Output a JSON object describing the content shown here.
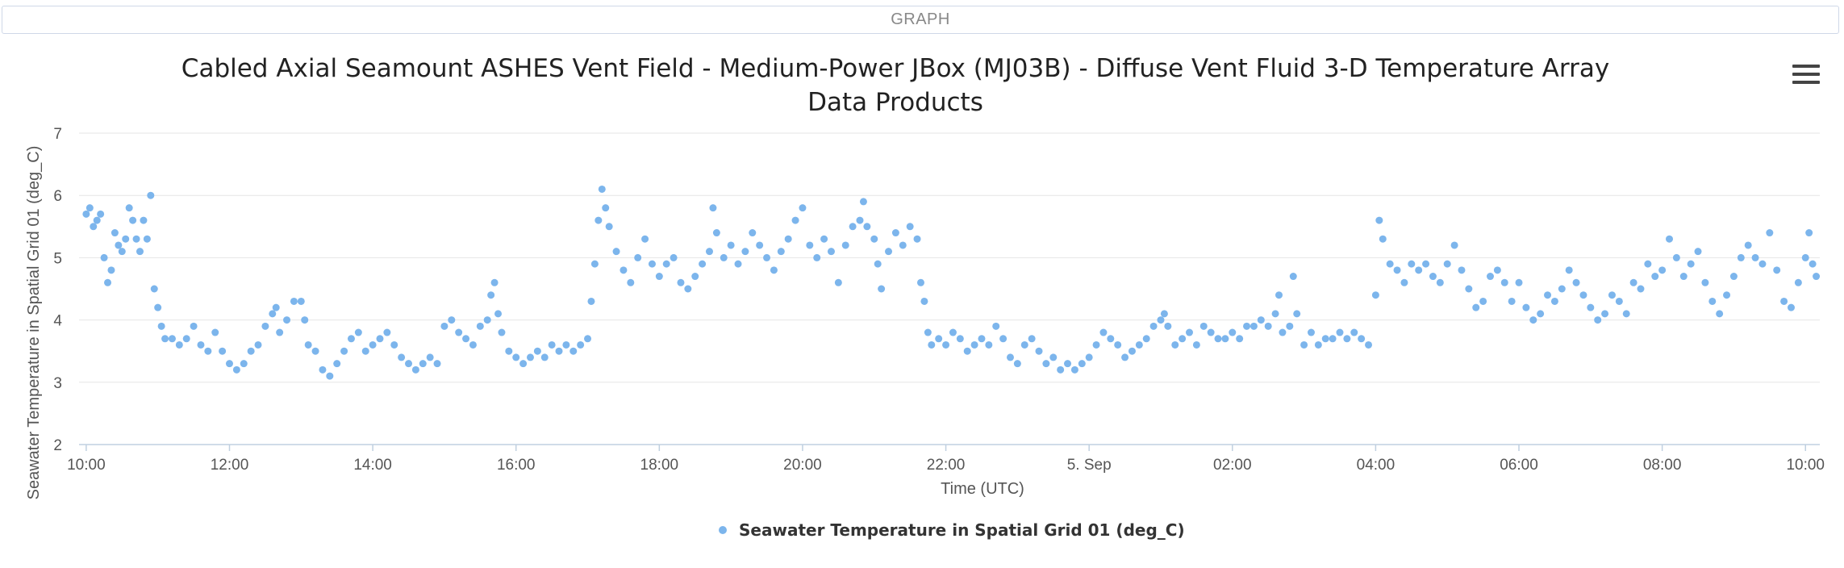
{
  "tab": {
    "label": "GRAPH"
  },
  "menu": {
    "icon": "hamburger-menu-icon"
  },
  "chart_data": {
    "type": "scatter",
    "title_line1": "Cabled Axial Seamount ASHES Vent Field - Medium-Power JBox (MJ03B) - Diffuse Vent Fluid 3-D Temperature Array",
    "title_line2": "Data Products",
    "xlabel": "Time (UTC)",
    "ylabel": "Seawater Temperature in Spatial Grid 01 (deg_C)",
    "ylim": [
      2,
      7
    ],
    "yticks": [
      "2",
      "3",
      "4",
      "5",
      "6",
      "7"
    ],
    "xlim_hours": [
      9.9,
      34.2
    ],
    "xticks": [
      {
        "h": 10,
        "label": "10:00"
      },
      {
        "h": 12,
        "label": "12:00"
      },
      {
        "h": 14,
        "label": "14:00"
      },
      {
        "h": 16,
        "label": "16:00"
      },
      {
        "h": 18,
        "label": "18:00"
      },
      {
        "h": 20,
        "label": "20:00"
      },
      {
        "h": 22,
        "label": "22:00"
      },
      {
        "h": 24,
        "label": "5. Sep"
      },
      {
        "h": 26,
        "label": "02:00"
      },
      {
        "h": 28,
        "label": "04:00"
      },
      {
        "h": 30,
        "label": "06:00"
      },
      {
        "h": 32,
        "label": "08:00"
      },
      {
        "h": 34,
        "label": "10:00"
      }
    ],
    "grid": true,
    "legend_position": "bottom-center",
    "series": [
      {
        "name": "Seawater Temperature in Spatial Grid 01 (deg_C)",
        "color": "#7cb5ec",
        "points": [
          [
            10.0,
            5.7
          ],
          [
            10.05,
            5.8
          ],
          [
            10.1,
            5.5
          ],
          [
            10.15,
            5.6
          ],
          [
            10.2,
            5.7
          ],
          [
            10.25,
            5.0
          ],
          [
            10.3,
            4.6
          ],
          [
            10.35,
            4.8
          ],
          [
            10.4,
            5.4
          ],
          [
            10.45,
            5.2
          ],
          [
            10.5,
            5.1
          ],
          [
            10.55,
            5.3
          ],
          [
            10.6,
            5.8
          ],
          [
            10.65,
            5.6
          ],
          [
            10.7,
            5.3
          ],
          [
            10.75,
            5.1
          ],
          [
            10.8,
            5.6
          ],
          [
            10.85,
            5.3
          ],
          [
            10.9,
            6.0
          ],
          [
            10.95,
            4.5
          ],
          [
            11.0,
            4.2
          ],
          [
            11.05,
            3.9
          ],
          [
            11.1,
            3.7
          ],
          [
            11.2,
            3.7
          ],
          [
            11.3,
            3.6
          ],
          [
            11.4,
            3.7
          ],
          [
            11.5,
            3.9
          ],
          [
            11.6,
            3.6
          ],
          [
            11.7,
            3.5
          ],
          [
            11.8,
            3.8
          ],
          [
            11.9,
            3.5
          ],
          [
            12.0,
            3.3
          ],
          [
            12.1,
            3.2
          ],
          [
            12.2,
            3.3
          ],
          [
            12.3,
            3.5
          ],
          [
            12.4,
            3.6
          ],
          [
            12.5,
            3.9
          ],
          [
            12.6,
            4.1
          ],
          [
            12.65,
            4.2
          ],
          [
            12.7,
            3.8
          ],
          [
            12.8,
            4.0
          ],
          [
            12.9,
            4.3
          ],
          [
            13.0,
            4.3
          ],
          [
            13.05,
            4.0
          ],
          [
            13.1,
            3.6
          ],
          [
            13.2,
            3.5
          ],
          [
            13.3,
            3.2
          ],
          [
            13.4,
            3.1
          ],
          [
            13.5,
            3.3
          ],
          [
            13.6,
            3.5
          ],
          [
            13.7,
            3.7
          ],
          [
            13.8,
            3.8
          ],
          [
            13.9,
            3.5
          ],
          [
            14.0,
            3.6
          ],
          [
            14.1,
            3.7
          ],
          [
            14.2,
            3.8
          ],
          [
            14.3,
            3.6
          ],
          [
            14.4,
            3.4
          ],
          [
            14.5,
            3.3
          ],
          [
            14.6,
            3.2
          ],
          [
            14.7,
            3.3
          ],
          [
            14.8,
            3.4
          ],
          [
            14.9,
            3.3
          ],
          [
            15.0,
            3.9
          ],
          [
            15.1,
            4.0
          ],
          [
            15.2,
            3.8
          ],
          [
            15.3,
            3.7
          ],
          [
            15.4,
            3.6
          ],
          [
            15.5,
            3.9
          ],
          [
            15.6,
            4.0
          ],
          [
            15.65,
            4.4
          ],
          [
            15.7,
            4.6
          ],
          [
            15.75,
            4.1
          ],
          [
            15.8,
            3.8
          ],
          [
            15.9,
            3.5
          ],
          [
            16.0,
            3.4
          ],
          [
            16.1,
            3.3
          ],
          [
            16.2,
            3.4
          ],
          [
            16.3,
            3.5
          ],
          [
            16.4,
            3.4
          ],
          [
            16.5,
            3.6
          ],
          [
            16.6,
            3.5
          ],
          [
            16.7,
            3.6
          ],
          [
            16.8,
            3.5
          ],
          [
            16.9,
            3.6
          ],
          [
            17.0,
            3.7
          ],
          [
            17.05,
            4.3
          ],
          [
            17.1,
            4.9
          ],
          [
            17.15,
            5.6
          ],
          [
            17.2,
            6.1
          ],
          [
            17.25,
            5.8
          ],
          [
            17.3,
            5.5
          ],
          [
            17.4,
            5.1
          ],
          [
            17.5,
            4.8
          ],
          [
            17.6,
            4.6
          ],
          [
            17.7,
            5.0
          ],
          [
            17.8,
            5.3
          ],
          [
            17.9,
            4.9
          ],
          [
            18.0,
            4.7
          ],
          [
            18.1,
            4.9
          ],
          [
            18.2,
            5.0
          ],
          [
            18.3,
            4.6
          ],
          [
            18.4,
            4.5
          ],
          [
            18.5,
            4.7
          ],
          [
            18.6,
            4.9
          ],
          [
            18.7,
            5.1
          ],
          [
            18.75,
            5.8
          ],
          [
            18.8,
            5.4
          ],
          [
            18.9,
            5.0
          ],
          [
            19.0,
            5.2
          ],
          [
            19.1,
            4.9
          ],
          [
            19.2,
            5.1
          ],
          [
            19.3,
            5.4
          ],
          [
            19.4,
            5.2
          ],
          [
            19.5,
            5.0
          ],
          [
            19.6,
            4.8
          ],
          [
            19.7,
            5.1
          ],
          [
            19.8,
            5.3
          ],
          [
            19.9,
            5.6
          ],
          [
            20.0,
            5.8
          ],
          [
            20.1,
            5.2
          ],
          [
            20.2,
            5.0
          ],
          [
            20.3,
            5.3
          ],
          [
            20.4,
            5.1
          ],
          [
            20.5,
            4.6
          ],
          [
            20.6,
            5.2
          ],
          [
            20.7,
            5.5
          ],
          [
            20.8,
            5.6
          ],
          [
            20.85,
            5.9
          ],
          [
            20.9,
            5.5
          ],
          [
            21.0,
            5.3
          ],
          [
            21.05,
            4.9
          ],
          [
            21.1,
            4.5
          ],
          [
            21.2,
            5.1
          ],
          [
            21.3,
            5.4
          ],
          [
            21.4,
            5.2
          ],
          [
            21.5,
            5.5
          ],
          [
            21.6,
            5.3
          ],
          [
            21.65,
            4.6
          ],
          [
            21.7,
            4.3
          ],
          [
            21.75,
            3.8
          ],
          [
            21.8,
            3.6
          ],
          [
            21.9,
            3.7
          ],
          [
            22.0,
            3.6
          ],
          [
            22.1,
            3.8
          ],
          [
            22.2,
            3.7
          ],
          [
            22.3,
            3.5
          ],
          [
            22.4,
            3.6
          ],
          [
            22.5,
            3.7
          ],
          [
            22.6,
            3.6
          ],
          [
            22.7,
            3.9
          ],
          [
            22.8,
            3.7
          ],
          [
            22.9,
            3.4
          ],
          [
            23.0,
            3.3
          ],
          [
            23.1,
            3.6
          ],
          [
            23.2,
            3.7
          ],
          [
            23.3,
            3.5
          ],
          [
            23.4,
            3.3
          ],
          [
            23.5,
            3.4
          ],
          [
            23.6,
            3.2
          ],
          [
            23.7,
            3.3
          ],
          [
            23.8,
            3.2
          ],
          [
            23.9,
            3.3
          ],
          [
            24.0,
            3.4
          ],
          [
            24.1,
            3.6
          ],
          [
            24.2,
            3.8
          ],
          [
            24.3,
            3.7
          ],
          [
            24.4,
            3.6
          ],
          [
            24.5,
            3.4
          ],
          [
            24.6,
            3.5
          ],
          [
            24.7,
            3.6
          ],
          [
            24.8,
            3.7
          ],
          [
            24.9,
            3.9
          ],
          [
            25.0,
            4.0
          ],
          [
            25.05,
            4.1
          ],
          [
            25.1,
            3.9
          ],
          [
            25.2,
            3.6
          ],
          [
            25.3,
            3.7
          ],
          [
            25.4,
            3.8
          ],
          [
            25.5,
            3.6
          ],
          [
            25.6,
            3.9
          ],
          [
            25.7,
            3.8
          ],
          [
            25.8,
            3.7
          ],
          [
            25.9,
            3.7
          ],
          [
            26.0,
            3.8
          ],
          [
            26.1,
            3.7
          ],
          [
            26.2,
            3.9
          ],
          [
            26.3,
            3.9
          ],
          [
            26.4,
            4.0
          ],
          [
            26.5,
            3.9
          ],
          [
            26.6,
            4.1
          ],
          [
            26.65,
            4.4
          ],
          [
            26.7,
            3.8
          ],
          [
            26.8,
            3.9
          ],
          [
            26.85,
            4.7
          ],
          [
            26.9,
            4.1
          ],
          [
            27.0,
            3.6
          ],
          [
            27.1,
            3.8
          ],
          [
            27.2,
            3.6
          ],
          [
            27.3,
            3.7
          ],
          [
            27.4,
            3.7
          ],
          [
            27.5,
            3.8
          ],
          [
            27.6,
            3.7
          ],
          [
            27.7,
            3.8
          ],
          [
            27.8,
            3.7
          ],
          [
            27.9,
            3.6
          ],
          [
            28.0,
            4.4
          ],
          [
            28.05,
            5.6
          ],
          [
            28.1,
            5.3
          ],
          [
            28.2,
            4.9
          ],
          [
            28.3,
            4.8
          ],
          [
            28.4,
            4.6
          ],
          [
            28.5,
            4.9
          ],
          [
            28.6,
            4.8
          ],
          [
            28.7,
            4.9
          ],
          [
            28.8,
            4.7
          ],
          [
            28.9,
            4.6
          ],
          [
            29.0,
            4.9
          ],
          [
            29.1,
            5.2
          ],
          [
            29.2,
            4.8
          ],
          [
            29.3,
            4.5
          ],
          [
            29.4,
            4.2
          ],
          [
            29.5,
            4.3
          ],
          [
            29.6,
            4.7
          ],
          [
            29.7,
            4.8
          ],
          [
            29.8,
            4.6
          ],
          [
            29.9,
            4.3
          ],
          [
            30.0,
            4.6
          ],
          [
            30.1,
            4.2
          ],
          [
            30.2,
            4.0
          ],
          [
            30.3,
            4.1
          ],
          [
            30.4,
            4.4
          ],
          [
            30.5,
            4.3
          ],
          [
            30.6,
            4.5
          ],
          [
            30.7,
            4.8
          ],
          [
            30.8,
            4.6
          ],
          [
            30.9,
            4.4
          ],
          [
            31.0,
            4.2
          ],
          [
            31.1,
            4.0
          ],
          [
            31.2,
            4.1
          ],
          [
            31.3,
            4.4
          ],
          [
            31.4,
            4.3
          ],
          [
            31.5,
            4.1
          ],
          [
            31.6,
            4.6
          ],
          [
            31.7,
            4.5
          ],
          [
            31.8,
            4.9
          ],
          [
            31.9,
            4.7
          ],
          [
            32.0,
            4.8
          ],
          [
            32.1,
            5.3
          ],
          [
            32.2,
            5.0
          ],
          [
            32.3,
            4.7
          ],
          [
            32.4,
            4.9
          ],
          [
            32.5,
            5.1
          ],
          [
            32.6,
            4.6
          ],
          [
            32.7,
            4.3
          ],
          [
            32.8,
            4.1
          ],
          [
            32.9,
            4.4
          ],
          [
            33.0,
            4.7
          ],
          [
            33.1,
            5.0
          ],
          [
            33.2,
            5.2
          ],
          [
            33.3,
            5.0
          ],
          [
            33.4,
            4.9
          ],
          [
            33.5,
            5.4
          ],
          [
            33.6,
            4.8
          ],
          [
            33.7,
            4.3
          ],
          [
            33.8,
            4.2
          ],
          [
            33.9,
            4.6
          ],
          [
            34.0,
            5.0
          ],
          [
            34.05,
            5.4
          ],
          [
            34.1,
            4.9
          ],
          [
            34.15,
            4.7
          ]
        ]
      }
    ]
  }
}
